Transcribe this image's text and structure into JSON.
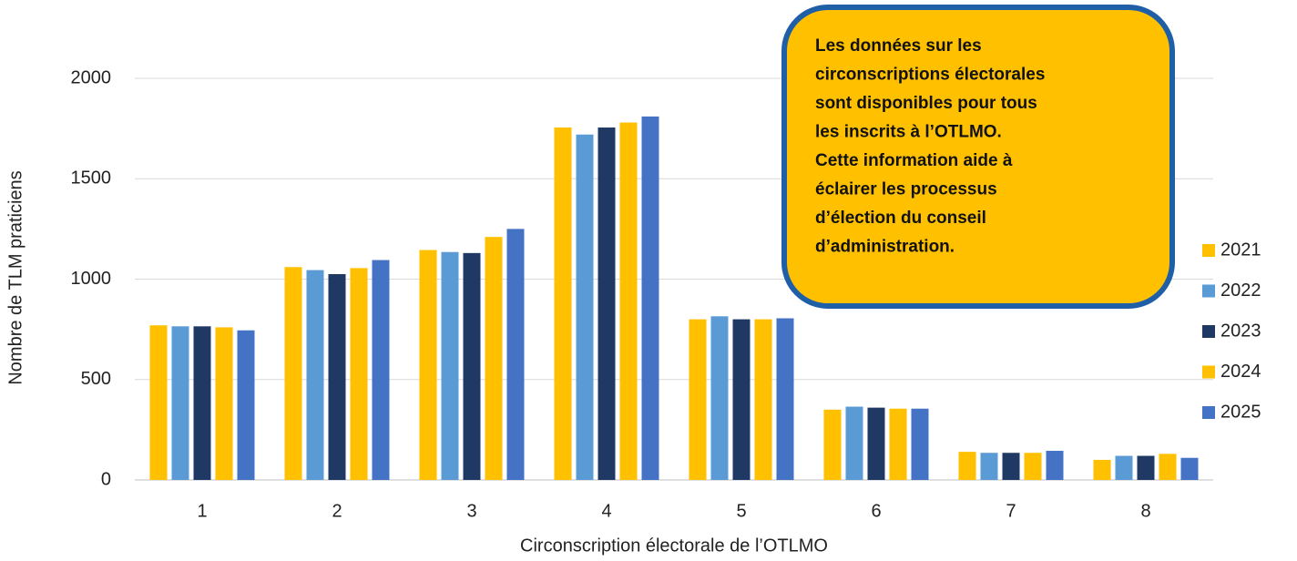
{
  "chart_data": {
    "type": "bar",
    "x_label": "Circonscription électorale de l’OTLMO",
    "y_label": "Nombre de TLM praticiens",
    "annotation": [
      "Les données sur les",
      "circonscriptions électorales",
      "sont disponibles pour tous",
      "les inscrits à l’OTLMO.",
      "Cette information aide à",
      "éclairer les processus",
      "d’élection du conseil",
      "d’administration."
    ],
    "categories": [
      "1",
      "2",
      "3",
      "4",
      "5",
      "6",
      "7",
      "8"
    ],
    "series": [
      {
        "name": "2021",
        "color": "#ffc000",
        "values": [
          770,
          1060,
          1145,
          1755,
          800,
          350,
          140,
          100
        ]
      },
      {
        "name": "2022",
        "color": "#5b9bd5",
        "values": [
          765,
          1045,
          1135,
          1720,
          815,
          365,
          135,
          120
        ]
      },
      {
        "name": "2023",
        "color": "#203864",
        "values": [
          765,
          1025,
          1130,
          1755,
          800,
          360,
          135,
          120
        ]
      },
      {
        "name": "2024",
        "color": "#ffc000",
        "values": [
          760,
          1055,
          1210,
          1780,
          800,
          355,
          135,
          130
        ]
      },
      {
        "name": "2025",
        "color": "#4472c4",
        "values": [
          745,
          1095,
          1250,
          1810,
          805,
          355,
          145,
          110
        ]
      }
    ],
    "ylim": [
      0,
      2000
    ],
    "yticks": [
      0,
      500,
      1000,
      1500,
      2000
    ],
    "grid": true,
    "legend": "right"
  }
}
